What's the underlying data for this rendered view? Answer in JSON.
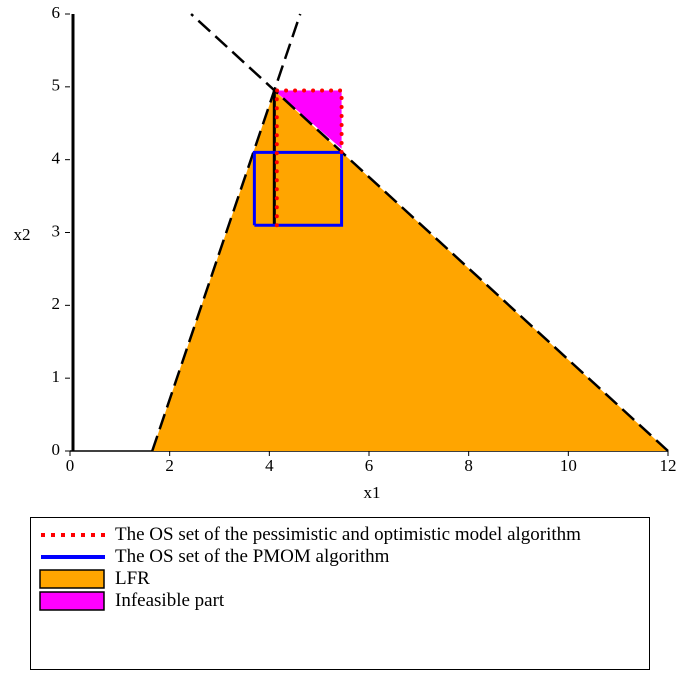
{
  "chart_data": {
    "type": "polygon",
    "xlabel": "x1",
    "ylabel": "x2",
    "xlim": [
      0,
      12
    ],
    "ylim": [
      0,
      6
    ],
    "xticks": [
      0,
      2,
      4,
      6,
      8,
      10,
      12
    ],
    "yticks": [
      0,
      1,
      2,
      3,
      4,
      5,
      6
    ],
    "series": [
      {
        "name": "The OS set of the pessimistic and optimistic model algorithm",
        "color": "#ff0000",
        "style": "dotted",
        "x": [
          4.15,
          4.15,
          5.45,
          5.45
        ],
        "y": [
          3.1,
          4.95,
          4.95,
          4.1
        ]
      },
      {
        "name": "The OS set of the PMOM algorithm",
        "color": "#0000ff",
        "style": "solid",
        "x": [
          3.7,
          5.45,
          5.45,
          3.7,
          3.7
        ],
        "y": [
          3.1,
          3.1,
          4.1,
          4.1,
          3.1
        ]
      },
      {
        "name": "LFR",
        "color": "#ffa500",
        "style": "fill",
        "x": [
          1.65,
          4.1,
          12
        ],
        "y": [
          0,
          4.95,
          0
        ]
      },
      {
        "name": "Infeasible part",
        "color": "#ff00ff",
        "style": "fill",
        "x": [
          4.1,
          5.45,
          5.45
        ],
        "y": [
          4.95,
          4.95,
          4.15
        ]
      }
    ],
    "lines": [
      {
        "color": "#000000",
        "style": "dashed",
        "x": [
          1.65,
          4.62
        ],
        "y": [
          0,
          6
        ]
      },
      {
        "color": "#000000",
        "style": "dashed",
        "x": [
          12,
          2.43
        ],
        "y": [
          0,
          6
        ]
      },
      {
        "color": "#000000",
        "style": "solid",
        "x": [
          4.1,
          4.1
        ],
        "y": [
          3.1,
          4.95
        ]
      }
    ]
  }
}
